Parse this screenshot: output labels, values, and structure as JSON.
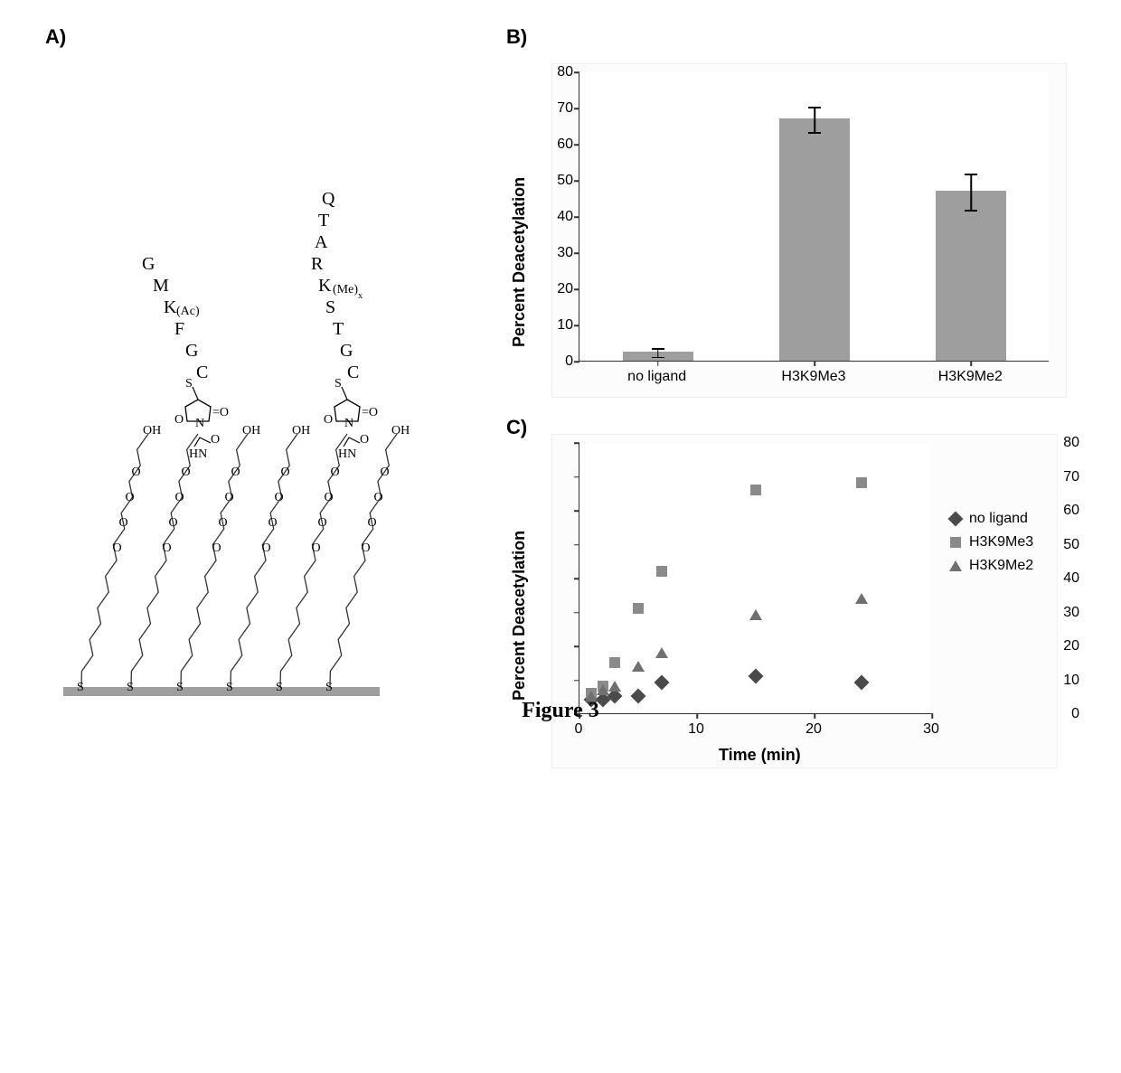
{
  "caption": "Figure 3",
  "panels": {
    "A": {
      "label": "A)"
    },
    "B": {
      "label": "B)"
    },
    "C": {
      "label": "C)"
    }
  },
  "panelA": {
    "left_peptide": [
      "G",
      "M",
      "K",
      "F",
      "G",
      "C"
    ],
    "left_peptide_mod": "(Ac)",
    "right_peptide": [
      "Q",
      "T",
      "A",
      "R",
      "K",
      "S",
      "T",
      "G",
      "C"
    ],
    "right_peptide_mod": "(Me)",
    "right_peptide_mod_sub": "x",
    "linker_atoms": [
      "S",
      "O",
      "N",
      "HN",
      "OH"
    ],
    "colors": {
      "peptide": "#000000",
      "chain": "#333333",
      "surface": "#9e9e9e"
    },
    "num_chains": 6
  },
  "barChart": {
    "type": "bar",
    "y_label": "Percent Deacetylation",
    "y_label_fontsize": 18,
    "ylim": [
      0,
      80
    ],
    "ytick_step": 10,
    "categories": [
      "no ligand",
      "H3K9Me3",
      "H3K9Me2"
    ],
    "values": [
      2.5,
      67,
      47
    ],
    "errors": [
      1.2,
      3.5,
      5.0
    ],
    "bar_color": "#9e9e9e",
    "bar_width": 0.45,
    "background_color": "#ffffff",
    "plot_bg": "#fcfcfc",
    "tick_fontsize": 16,
    "axis_color": "#333333"
  },
  "scatterChart": {
    "type": "scatter",
    "y_label": "Percent Deacetylation",
    "x_label": "Time (min)",
    "label_fontsize": 18,
    "ylim": [
      0,
      80
    ],
    "ytick_step": 10,
    "xlim": [
      0,
      30
    ],
    "xtick_step": 10,
    "background_color": "#ffffff",
    "plot_bg": "#fcfcfc",
    "tick_fontsize": 16,
    "axis_color": "#333333",
    "series": [
      {
        "name": "no ligand",
        "marker": "diamond",
        "color": "#4a4a4a",
        "points": [
          [
            1,
            4
          ],
          [
            2,
            4
          ],
          [
            3,
            5
          ],
          [
            5,
            5
          ],
          [
            7,
            9
          ],
          [
            15,
            11
          ],
          [
            24,
            9
          ]
        ]
      },
      {
        "name": "H3K9Me3",
        "marker": "square",
        "color": "#8a8a8a",
        "points": [
          [
            1,
            6
          ],
          [
            2,
            8
          ],
          [
            3,
            15
          ],
          [
            5,
            31
          ],
          [
            7,
            42
          ],
          [
            15,
            66
          ],
          [
            24,
            68
          ]
        ]
      },
      {
        "name": "H3K9Me2",
        "marker": "triangle",
        "color": "#707070",
        "points": [
          [
            1,
            5
          ],
          [
            2,
            7
          ],
          [
            3,
            8
          ],
          [
            5,
            14
          ],
          [
            7,
            18
          ],
          [
            15,
            29
          ],
          [
            24,
            34
          ]
        ]
      }
    ]
  }
}
